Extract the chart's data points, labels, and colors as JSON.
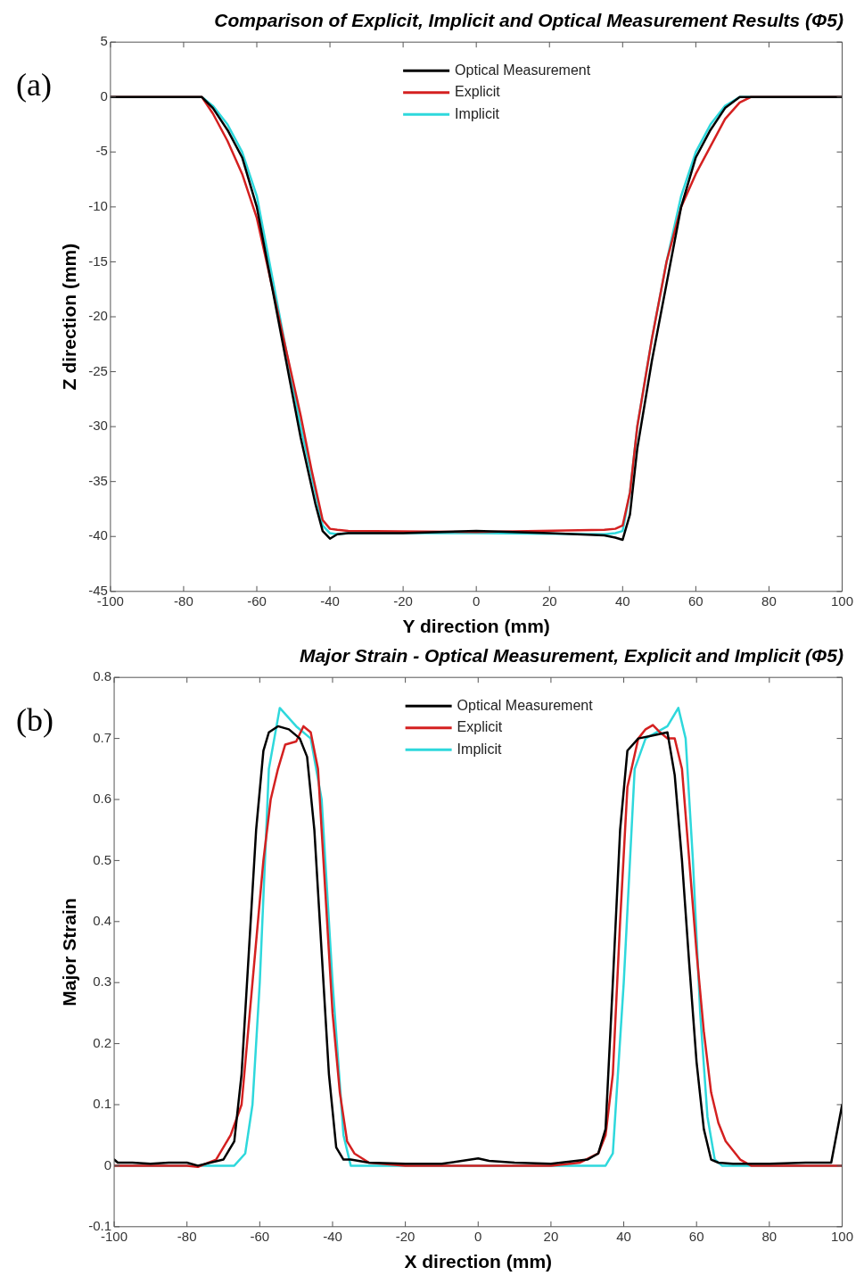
{
  "chart_data": [
    {
      "type": "line",
      "title": "Comparison of Explicit, Implicit and Optical Measurement Results (Φ5)",
      "xlabel": "Y direction (mm)",
      "ylabel": "Z direction (mm)",
      "annotations": [
        "(a)"
      ],
      "xlim": [
        -100,
        100
      ],
      "xticks": [
        -100,
        -80,
        -60,
        -40,
        -20,
        0,
        20,
        40,
        60,
        80,
        100
      ],
      "ylim": [
        -45,
        5
      ],
      "yticks": [
        -45,
        -40,
        -35,
        -30,
        -25,
        -20,
        -15,
        -10,
        -5,
        0,
        5
      ],
      "grid": false,
      "legend": "top",
      "line_style": "solid",
      "marker": "none",
      "series": [
        {
          "name": "Optical Measurement",
          "color": "#000000",
          "x": [
            -100,
            -90,
            -80,
            -75,
            -72,
            -68,
            -64,
            -60,
            -56,
            -52,
            -48,
            -44,
            -42,
            -40,
            -38,
            -35,
            -20,
            0,
            20,
            35,
            38,
            40,
            42,
            44,
            48,
            52,
            56,
            60,
            64,
            68,
            72,
            75,
            80,
            90,
            100
          ],
          "values": [
            0,
            0,
            0,
            0,
            -1,
            -3,
            -5.5,
            -10,
            -17,
            -24,
            -31,
            -37,
            -39.5,
            -40.2,
            -39.8,
            -39.7,
            -39.7,
            -39.5,
            -39.7,
            -39.9,
            -40.1,
            -40.3,
            -38,
            -32,
            -24,
            -17,
            -10,
            -5.5,
            -3,
            -1,
            0,
            0,
            0,
            0,
            0
          ]
        },
        {
          "name": "Explicit",
          "color": "#d42020",
          "x": [
            -100,
            -75,
            -72,
            -68,
            -64,
            -60,
            -56,
            -52,
            -48,
            -45,
            -42,
            -40,
            -38,
            -35,
            0,
            35,
            38,
            40,
            42,
            44,
            48,
            52,
            56,
            60,
            64,
            68,
            72,
            75,
            100
          ],
          "values": [
            0,
            0,
            -1.5,
            -4,
            -7,
            -11,
            -17,
            -23,
            -29,
            -34,
            -38.5,
            -39.3,
            -39.4,
            -39.5,
            -39.6,
            -39.4,
            -39.3,
            -39,
            -36,
            -30,
            -22,
            -15,
            -10,
            -7,
            -4.5,
            -2,
            -0.5,
            0,
            0
          ]
        },
        {
          "name": "Implicit",
          "color": "#2ed8dc",
          "x": [
            -100,
            -75,
            -72,
            -68,
            -64,
            -60,
            -56,
            -52,
            -48,
            -44,
            -42,
            -40,
            -38,
            -35,
            0,
            35,
            38,
            40,
            42,
            44,
            48,
            52,
            56,
            60,
            64,
            68,
            72,
            75,
            100
          ],
          "values": [
            0,
            0,
            -0.8,
            -2.5,
            -5,
            -9,
            -16,
            -23,
            -30,
            -36,
            -39,
            -39.7,
            -39.8,
            -39.7,
            -39.7,
            -39.8,
            -39.7,
            -39.5,
            -36,
            -30,
            -22,
            -15,
            -9,
            -5,
            -2.5,
            -0.8,
            0,
            0,
            0
          ]
        }
      ]
    },
    {
      "type": "line",
      "title": "Major Strain - Optical Measurement, Explicit and Implicit (Φ5)",
      "xlabel": "X direction (mm)",
      "ylabel": "Major Strain",
      "annotations": [
        "(b)"
      ],
      "xlim": [
        -100,
        100
      ],
      "xticks": [
        -100,
        -80,
        -60,
        -40,
        -20,
        0,
        20,
        40,
        60,
        80,
        100
      ],
      "ylim": [
        -0.1,
        0.8
      ],
      "yticks": [
        -0.1,
        0,
        0.1,
        0.2,
        0.3,
        0.4,
        0.5,
        0.6,
        0.7,
        0.8
      ],
      "grid": false,
      "legend": "top",
      "line_style": "solid",
      "marker": "none",
      "series": [
        {
          "name": "Optical Measurement",
          "color": "#000000",
          "x": [
            -100,
            -99,
            -95,
            -90,
            -85,
            -80,
            -77,
            -70,
            -67,
            -65,
            -63,
            -61,
            -59,
            -57.5,
            -55,
            -52,
            -49,
            -47,
            -45,
            -43,
            -41,
            -39,
            -37,
            -35,
            -30,
            -20,
            -10,
            0,
            3,
            10,
            20,
            30,
            33,
            35,
            37,
            39,
            41,
            44,
            48,
            52,
            54,
            56,
            58,
            60,
            62,
            64,
            66,
            70,
            80,
            90,
            97,
            100
          ],
          "values": [
            0.01,
            0.005,
            0.005,
            0.003,
            0.005,
            0.005,
            0.0,
            0.01,
            0.04,
            0.15,
            0.35,
            0.55,
            0.68,
            0.71,
            0.72,
            0.715,
            0.7,
            0.67,
            0.55,
            0.35,
            0.15,
            0.03,
            0.01,
            0.01,
            0.005,
            0.003,
            0.003,
            0.012,
            0.008,
            0.005,
            0.003,
            0.01,
            0.02,
            0.06,
            0.3,
            0.55,
            0.68,
            0.7,
            0.705,
            0.71,
            0.64,
            0.5,
            0.33,
            0.17,
            0.06,
            0.01,
            0.005,
            0.003,
            0.003,
            0.005,
            0.005,
            0.1
          ]
        },
        {
          "name": "Explicit",
          "color": "#d42020",
          "x": [
            -100,
            -80,
            -77,
            -72,
            -68,
            -65,
            -62,
            -59,
            -57,
            -55,
            -53,
            -50,
            -48,
            -46,
            -44,
            -42,
            -40,
            -38,
            -36,
            -34,
            -30,
            -20,
            0,
            20,
            28,
            33,
            35,
            37,
            39,
            41,
            44,
            46,
            48,
            50,
            52,
            54,
            56,
            58,
            60,
            62,
            64,
            66,
            68,
            70,
            72,
            75,
            80,
            100
          ],
          "values": [
            0,
            0,
            -0.002,
            0.01,
            0.05,
            0.1,
            0.3,
            0.5,
            0.6,
            0.65,
            0.69,
            0.695,
            0.72,
            0.71,
            0.65,
            0.45,
            0.25,
            0.12,
            0.04,
            0.02,
            0.005,
            0,
            0,
            0,
            0.005,
            0.02,
            0.05,
            0.15,
            0.4,
            0.62,
            0.7,
            0.715,
            0.722,
            0.71,
            0.7,
            0.7,
            0.65,
            0.5,
            0.35,
            0.22,
            0.12,
            0.07,
            0.04,
            0.025,
            0.01,
            0,
            0,
            0
          ]
        },
        {
          "name": "Implicit",
          "color": "#2ed8dc",
          "x": [
            -100,
            -67,
            -64,
            -62,
            -60,
            -57.5,
            -54.5,
            -50,
            -46,
            -43,
            -40,
            -37,
            -35,
            0,
            35,
            37,
            40,
            43,
            46,
            52,
            55,
            57,
            59,
            61,
            63,
            65,
            67,
            100
          ],
          "values": [
            0,
            0,
            0.02,
            0.1,
            0.3,
            0.65,
            0.75,
            0.72,
            0.7,
            0.6,
            0.3,
            0.05,
            0,
            0,
            0,
            0.02,
            0.3,
            0.65,
            0.7,
            0.72,
            0.75,
            0.7,
            0.5,
            0.25,
            0.08,
            0.01,
            0,
            0
          ]
        }
      ]
    }
  ]
}
